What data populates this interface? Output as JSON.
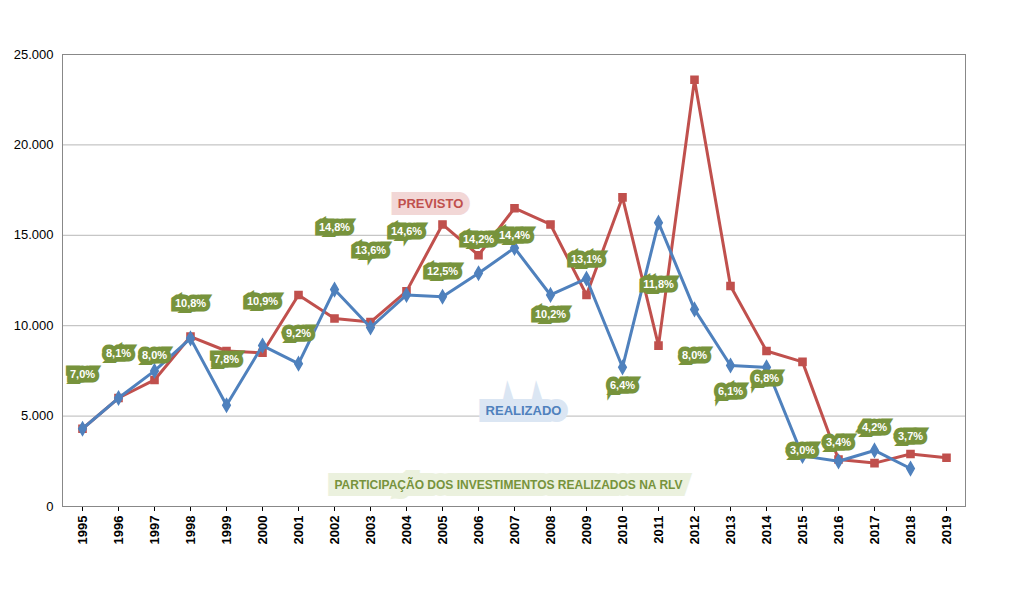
{
  "chart_data": {
    "type": "line",
    "categories": [
      "1995",
      "1996",
      "1997",
      "1998",
      "1999",
      "2000",
      "2001",
      "2002",
      "2003",
      "2004",
      "2005",
      "2006",
      "2007",
      "2008",
      "2009",
      "2010",
      "2011",
      "2012",
      "2013",
      "2014",
      "2015",
      "2016",
      "2017",
      "2018",
      "2019"
    ],
    "ylim": [
      0,
      25000
    ],
    "yticks": [
      0,
      {
        "value": 5000,
        "label": "5.000"
      },
      {
        "value": 10000,
        "label": "10.000"
      },
      {
        "value": 15000,
        "label": "15.000"
      },
      {
        "value": 20000,
        "label": "20.000"
      },
      {
        "value": 25000,
        "label": "25.000"
      }
    ],
    "y2lim": [
      0,
      24
    ],
    "grid": true,
    "series": [
      {
        "name": "PREVISTO",
        "type": "line",
        "color": "#c0504d",
        "marker": "square",
        "values": [
          4300,
          6000,
          7000,
          9400,
          8600,
          8500,
          11700,
          10400,
          10200,
          11900,
          15600,
          13900,
          16500,
          15600,
          11700,
          17100,
          8900,
          23600,
          12200,
          8600,
          8000,
          2600,
          2400,
          2900,
          2700
        ]
      },
      {
        "name": "REALIZADO",
        "type": "line",
        "color": "#4f81bd",
        "marker": "diamond",
        "values": [
          4300,
          6000,
          7500,
          9300,
          5600,
          8900,
          7900,
          12000,
          9900,
          11700,
          11600,
          12900,
          14300,
          11700,
          12600,
          7700,
          15700,
          10900,
          7800,
          7700,
          2800,
          2500,
          3100,
          2100,
          null
        ]
      },
      {
        "name": "PARTICIPAÇÃO DOS INVESTIMENTOS REALIZADOS NA RLV",
        "type": "label",
        "color": "#77933c",
        "axis": "y2",
        "values": [
          7.0,
          8.1,
          8.0,
          10.8,
          7.8,
          10.9,
          9.2,
          14.8,
          13.6,
          14.6,
          12.5,
          14.2,
          14.4,
          10.2,
          13.1,
          6.4,
          11.8,
          8.0,
          6.1,
          6.8,
          3.0,
          3.4,
          4.2,
          3.7,
          null
        ],
        "value_labels": [
          "7,0%",
          "8,1%",
          "8,0%",
          "10,8%",
          "7,8%",
          "10,9%",
          "9,2%",
          "14,8%",
          "13,6%",
          "14,6%",
          "12,5%",
          "14,2%",
          "14,4%",
          "10,2%",
          "13,1%",
          "6,4%",
          "11,8%",
          "8,0%",
          "6,1%",
          "6,8%",
          "3,0%",
          "3,4%",
          "4,2%",
          "3,7%",
          null
        ]
      }
    ]
  }
}
